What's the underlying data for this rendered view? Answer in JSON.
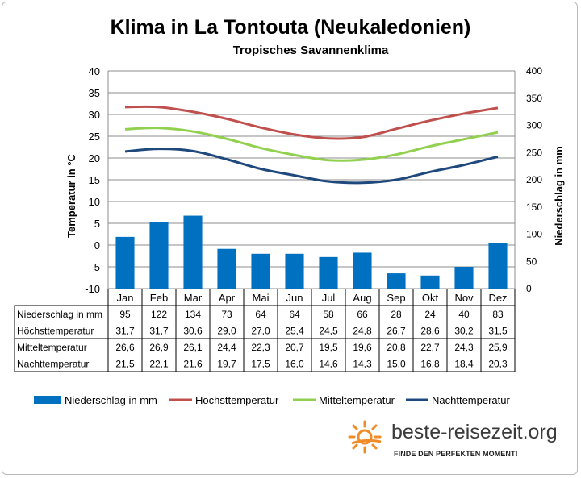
{
  "title": "Klima in La Tontouta (Neukaledonien)",
  "subtitle": "Tropisches Savannenklima",
  "chart_data": {
    "type": "bar",
    "categories": [
      "Jan",
      "Feb",
      "Mar",
      "Apr",
      "Mai",
      "Jun",
      "Jul",
      "Aug",
      "Sep",
      "Okt",
      "Nov",
      "Dez"
    ],
    "ylabel_left": "Temperatur in °C",
    "ylabel_right": "Niederschlag in mm",
    "ylim_left": [
      -10,
      40
    ],
    "ylim_right": [
      0,
      400
    ],
    "yticks_left": [
      "40",
      "35",
      "30",
      "25",
      "20",
      "15",
      "10",
      "5",
      "0",
      "-5",
      "-10"
    ],
    "yticks_right": [
      "400",
      "350",
      "300",
      "250",
      "200",
      "150",
      "100",
      "50",
      "0"
    ],
    "series": [
      {
        "name": "Niederschlag in mm",
        "type": "bar",
        "axis": "right",
        "color": "#0070c0",
        "values": [
          95,
          122,
          134,
          73,
          64,
          64,
          58,
          66,
          28,
          24,
          40,
          83
        ]
      },
      {
        "name": "Höchsttemperatur",
        "type": "line",
        "axis": "left",
        "color": "#c0504d",
        "values": [
          31.7,
          31.7,
          30.6,
          29.0,
          27.0,
          25.4,
          24.5,
          24.8,
          26.7,
          28.6,
          30.2,
          31.5
        ]
      },
      {
        "name": "Mitteltemperatur",
        "type": "line",
        "axis": "left",
        "color": "#92d050",
        "values": [
          26.6,
          26.9,
          26.1,
          24.4,
          22.3,
          20.7,
          19.5,
          19.6,
          20.8,
          22.7,
          24.3,
          25.9
        ]
      },
      {
        "name": "Nachttemperatur",
        "type": "line",
        "axis": "left",
        "color": "#1f497d",
        "values": [
          21.5,
          22.1,
          21.6,
          19.7,
          17.5,
          16.0,
          14.6,
          14.3,
          15.0,
          16.8,
          18.4,
          20.3
        ]
      }
    ],
    "table": {
      "rows": [
        {
          "label": "Niederschlag in mm",
          "cells": [
            "95",
            "122",
            "134",
            "73",
            "64",
            "64",
            "58",
            "66",
            "28",
            "24",
            "40",
            "83"
          ]
        },
        {
          "label": "Höchsttemperatur",
          "cells": [
            "31,7",
            "31,7",
            "30,6",
            "29,0",
            "27,0",
            "25,4",
            "24,5",
            "24,8",
            "26,7",
            "28,6",
            "30,2",
            "31,5"
          ]
        },
        {
          "label": "Mitteltemperatur",
          "cells": [
            "26,6",
            "26,9",
            "26,1",
            "24,4",
            "22,3",
            "20,7",
            "19,5",
            "19,6",
            "20,8",
            "22,7",
            "24,3",
            "25,9"
          ]
        },
        {
          "label": "Nachttemperatur",
          "cells": [
            "21,5",
            "22,1",
            "21,6",
            "19,7",
            "17,5",
            "16,0",
            "14,6",
            "14,3",
            "15,0",
            "16,8",
            "18,4",
            "20,3"
          ]
        }
      ]
    },
    "grid": true,
    "legend_position": "bottom"
  },
  "logo": {
    "text": "beste-reisezeit.org",
    "tagline": "FINDE DEN PERFEKTEN MOMENT!",
    "icon": "sun-icon"
  }
}
